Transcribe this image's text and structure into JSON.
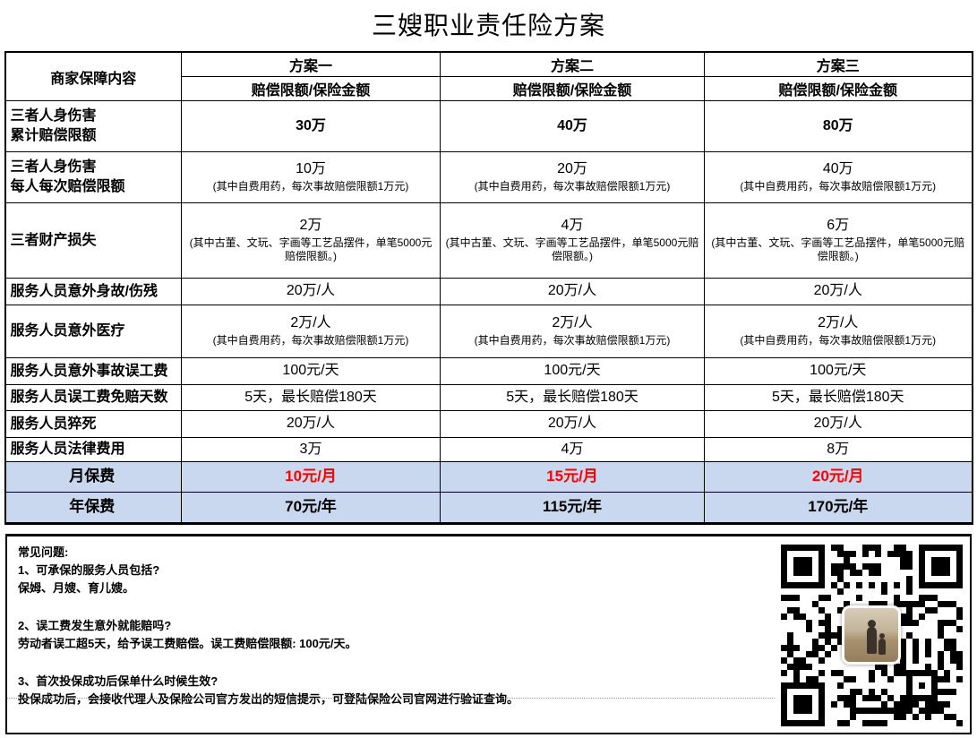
{
  "title": "三嫂职业责任险方案",
  "table": {
    "corner_header": "商家保障内容",
    "sub_header": "赔偿限额/保险金额",
    "plans": [
      "方案一",
      "方案二",
      "方案三"
    ],
    "rows": [
      {
        "label_line1": "三者人身伤害",
        "label_line2": "累计赔偿限额",
        "values": [
          "30万",
          "40万",
          "80万"
        ]
      },
      {
        "label_line1": "三者人身伤害",
        "label_line2": "每人每次赔偿限额",
        "values": [
          "10万",
          "20万",
          "40万"
        ],
        "note": "(其中自费用药，每次事故赔偿限额1万元)"
      },
      {
        "label_line1": "三者财产损失",
        "values": [
          "2万",
          "4万",
          "6万"
        ],
        "note": "(其中古董、文玩、字画等工艺品摆件，单笔5000元赔偿限额。)"
      },
      {
        "label_line1": "服务人员意外身故/伤残",
        "values": [
          "20万/人",
          "20万/人",
          "20万/人"
        ]
      },
      {
        "label_line1": "服务人员意外医疗",
        "values": [
          "2万/人",
          "2万/人",
          "2万/人"
        ],
        "note": "(其中自费用药，每次事故赔偿限额1万元)"
      },
      {
        "label_line1": "服务人员意外事故误工费",
        "values": [
          "100元/天",
          "100元/天",
          "100元/天"
        ]
      },
      {
        "label_line1": "服务人员误工费免赔天数",
        "values": [
          "5天，最长赔偿180天",
          "5天，最长赔偿180天",
          "5天，最长赔偿180天"
        ]
      },
      {
        "label_line1": "服务人员猝死",
        "values": [
          "20万/人",
          "20万/人",
          "20万/人"
        ]
      },
      {
        "label_line1": "服务人员法律费用",
        "values": [
          "3万",
          "4万",
          "8万"
        ]
      },
      {
        "label_line1": "月保费",
        "values": [
          "10元/月",
          "15元/月",
          "20元/月"
        ]
      },
      {
        "label_line1": "年保费",
        "values": [
          "70元/年",
          "115元/年",
          "170元/年"
        ]
      }
    ]
  },
  "faq": {
    "heading": "常见问题:",
    "q1": "1、可承保的服务人员包括?",
    "a1": "保姆、月嫂、育儿嫂。",
    "q2": "2、误工费发生意外就能赔吗?",
    "a2": "劳动者误工超5天，给予误工费赔偿。误工费赔偿限额: 100元/天。",
    "q3": "3、首次投保成功后保单什么时候生效?",
    "a3": "投保成功后，会接收代理人及保险公司官方发出的短信提示，可登陆保险公司官网进行验证查询。"
  },
  "icons": {
    "qr_code": "wechat-style-qr-code-with-center-photo"
  },
  "colors": {
    "highlight_row_bg": "#c9d8ee",
    "premium_red": "#ff0000",
    "border_black": "#000000"
  }
}
